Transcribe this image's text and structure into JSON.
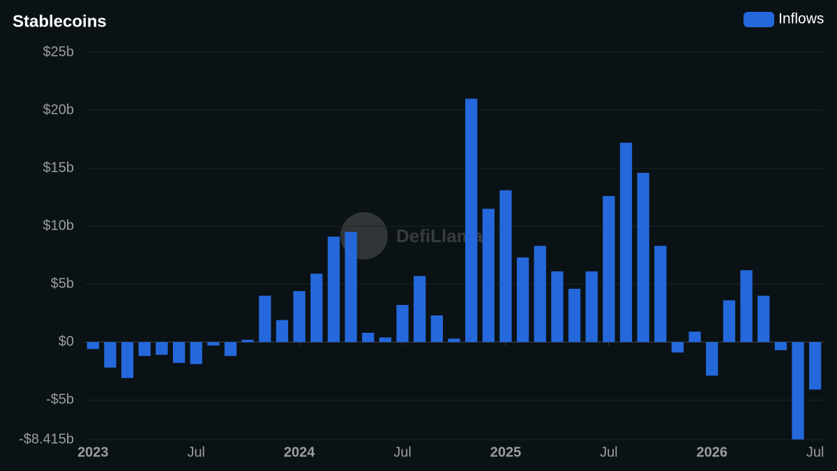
{
  "chart_data": {
    "type": "bar",
    "title": "Stablecoins",
    "watermark": "DefiLlama",
    "categories": [
      "2023",
      null,
      null,
      null,
      null,
      null,
      "Jul",
      null,
      null,
      null,
      null,
      null,
      "2024",
      null,
      null,
      null,
      null,
      null,
      "Jul",
      null,
      null,
      null,
      null,
      null,
      "2025",
      null,
      null,
      null,
      null,
      null,
      "Jul",
      null,
      null,
      null,
      null,
      null,
      "2026",
      null,
      null,
      null,
      null,
      null,
      "Jul"
    ],
    "series": [
      {
        "name": "Inflows",
        "color": "#2468dc",
        "values": [
          -0.6,
          -2.2,
          -3.1,
          -1.2,
          -1.1,
          -1.8,
          -1.9,
          -0.3,
          -1.2,
          0.2,
          4.0,
          1.9,
          4.4,
          5.9,
          9.1,
          9.5,
          0.8,
          0.4,
          3.2,
          5.7,
          2.3,
          0.3,
          21.0,
          11.5,
          13.1,
          7.3,
          8.3,
          6.1,
          4.6,
          6.1,
          12.6,
          17.2,
          14.6,
          8.3,
          -0.9,
          0.9,
          -2.9,
          3.6,
          6.2,
          4.0,
          -0.7,
          -8.4,
          -4.1
        ]
      }
    ],
    "ylim": [
      -8.415,
      25
    ],
    "yticks": [
      {
        "value": -8.415,
        "label": "-$8.415b"
      },
      {
        "value": -5,
        "label": "-$5b"
      },
      {
        "value": 0,
        "label": "$0"
      },
      {
        "value": 5,
        "label": "$5b"
      },
      {
        "value": 10,
        "label": "$10b"
      },
      {
        "value": 15,
        "label": "$15b"
      },
      {
        "value": 20,
        "label": "$20b"
      },
      {
        "value": 25,
        "label": "$25b"
      }
    ],
    "grid": true,
    "legend": "top-right"
  }
}
